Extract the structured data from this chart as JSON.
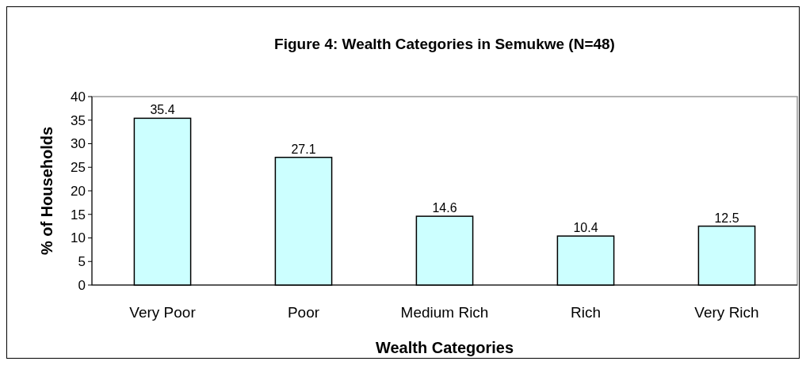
{
  "chart_data": {
    "type": "bar",
    "title": "Figure 4: Wealth Categories in Semukwe (N=48)",
    "xlabel": "Wealth Categories",
    "ylabel": "% of Households",
    "categories": [
      "Very Poor",
      "Poor",
      "Medium Rich",
      "Rich",
      "Very Rich"
    ],
    "values": [
      35.4,
      27.1,
      14.6,
      10.4,
      12.5
    ],
    "color": "#ccffff",
    "ylim": [
      0,
      40
    ],
    "yticks": [
      0,
      5,
      10,
      15,
      20,
      25,
      30,
      35,
      40
    ],
    "grid": false,
    "data_labels": true
  }
}
